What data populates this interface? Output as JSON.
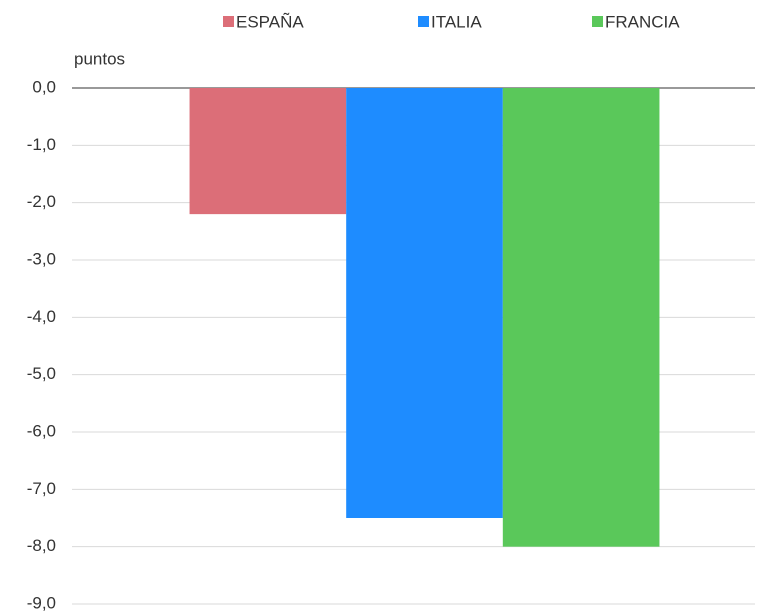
{
  "chart_data": {
    "type": "bar",
    "y_label": "puntos",
    "categories": [
      null
    ],
    "series": [
      {
        "name": "ESPAÑA",
        "color": "#dc6e78",
        "values": [
          -2.2
        ]
      },
      {
        "name": "ITALIA",
        "color": "#1e8cff",
        "values": [
          -7.5
        ]
      },
      {
        "name": "FRANCIA",
        "color": "#5ac85a",
        "values": [
          -8.0
        ]
      }
    ],
    "ylim": [
      -9,
      0
    ],
    "yticks": [
      {
        "value": 0,
        "label": "0,0"
      },
      {
        "value": -1,
        "label": "-1,0"
      },
      {
        "value": -2,
        "label": "-2,0"
      },
      {
        "value": -3,
        "label": "-3,0"
      },
      {
        "value": -4,
        "label": "-4,0"
      },
      {
        "value": -5,
        "label": "-5,0"
      },
      {
        "value": -6,
        "label": "-6,0"
      },
      {
        "value": -7,
        "label": "-7,0"
      },
      {
        "value": -8,
        "label": "-8,0"
      },
      {
        "value": -9,
        "label": "-9,0"
      }
    ],
    "grid": true,
    "legend": "top"
  }
}
